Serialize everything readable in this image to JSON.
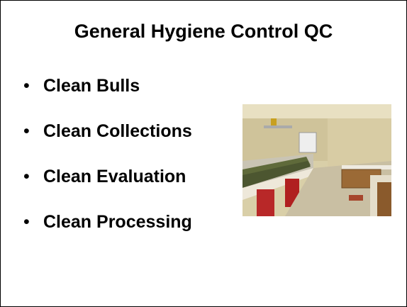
{
  "slide": {
    "title": "General Hygiene Control QC",
    "bullets": [
      "Clean Bulls",
      "Clean Collections",
      "Clean Evaluation",
      "Clean Processing"
    ]
  }
}
